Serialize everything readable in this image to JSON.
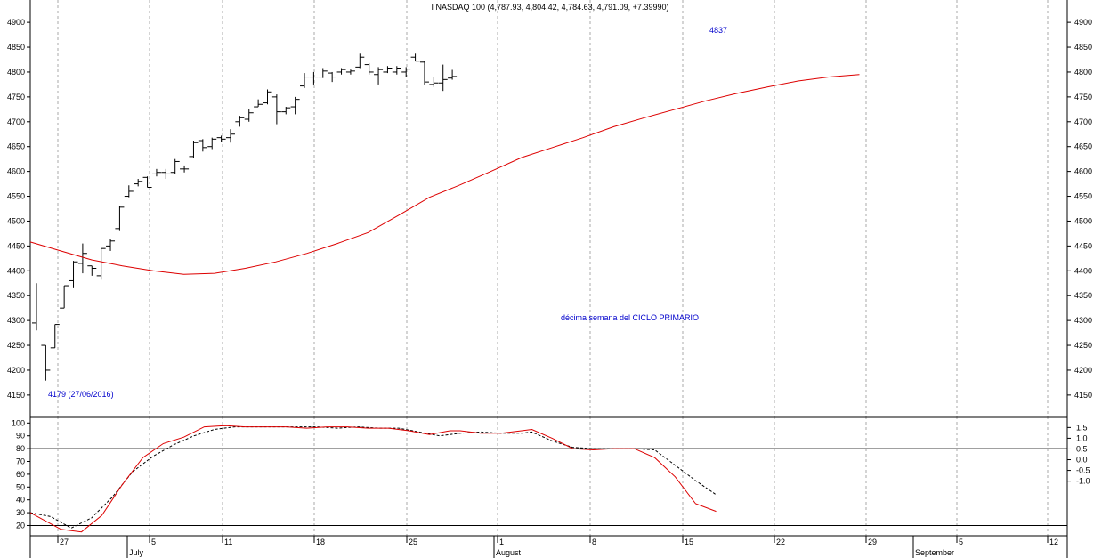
{
  "chart_data": {
    "type": "ohlc",
    "title": "I NASDAQ 100 (4,787.93, 4,804.42, 4,784.63, 4,791.09, +7.39990)",
    "annotations": {
      "low_label": "4179 (27/06/2016)",
      "high_label": "4837",
      "cycle_label": "décima semana del CICLO PRIMARIO"
    },
    "price_axis": {
      "ticks": [
        "4900",
        "4850",
        "4800",
        "4750",
        "4700",
        "4650",
        "4600",
        "4550",
        "4500",
        "4450",
        "4400",
        "4350",
        "4300",
        "4250",
        "4200",
        "4150"
      ],
      "ylim": [
        4105,
        4945
      ]
    },
    "osc_axis_left": {
      "ticks": [
        "100",
        "90",
        "80",
        "70",
        "60",
        "50",
        "40",
        "30",
        "20"
      ],
      "ylim": [
        12,
        103
      ]
    },
    "osc_axis_right": {
      "ticks": [
        "1.5",
        "1.0",
        "0.5",
        "0.0",
        "-0.5",
        "-1.0"
      ]
    },
    "reference_lines": [
      80,
      20
    ],
    "x_axis": {
      "day_ticks": [
        "27",
        "5",
        "11",
        "18",
        "25",
        "1",
        "8",
        "15",
        "22",
        "29",
        "5",
        "12"
      ],
      "months": [
        "July",
        "August",
        "September"
      ]
    },
    "series_colors": {
      "bars": "#000000",
      "moving_average": "#dd0000",
      "osc_fast": "#dd0000",
      "osc_slow": "#000000"
    },
    "bars": [
      {
        "o": 4295,
        "h": 4375,
        "l": 4280,
        "c": 4285
      },
      {
        "o": 4250,
        "h": 4250,
        "l": 4179,
        "c": 4200
      },
      {
        "o": 4245,
        "h": 4292,
        "l": 4245,
        "c": 4292
      },
      {
        "o": 4325,
        "h": 4370,
        "l": 4325,
        "c": 4370
      },
      {
        "o": 4380,
        "h": 4420,
        "l": 4365,
        "c": 4418
      },
      {
        "o": 4415,
        "h": 4455,
        "l": 4395,
        "c": 4435
      },
      {
        "o": 4410,
        "h": 4410,
        "l": 4390,
        "c": 4405
      },
      {
        "o": 4390,
        "h": 4445,
        "l": 4382,
        "c": 4445
      },
      {
        "o": 4450,
        "h": 4465,
        "l": 4440,
        "c": 4460
      },
      {
        "o": 4485,
        "h": 4530,
        "l": 4480,
        "c": 4528
      },
      {
        "o": 4550,
        "h": 4572,
        "l": 4548,
        "c": 4560
      },
      {
        "o": 4575,
        "h": 4585,
        "l": 4570,
        "c": 4580
      },
      {
        "o": 4588,
        "h": 4590,
        "l": 4568,
        "c": 4568
      },
      {
        "o": 4595,
        "h": 4605,
        "l": 4590,
        "c": 4598
      },
      {
        "o": 4598,
        "h": 4605,
        "l": 4585,
        "c": 4595
      },
      {
        "o": 4598,
        "h": 4625,
        "l": 4595,
        "c": 4620
      },
      {
        "o": 4605,
        "h": 4612,
        "l": 4598,
        "c": 4605
      },
      {
        "o": 4630,
        "h": 4662,
        "l": 4628,
        "c": 4658
      },
      {
        "o": 4662,
        "h": 4665,
        "l": 4640,
        "c": 4648
      },
      {
        "o": 4650,
        "h": 4668,
        "l": 4645,
        "c": 4665
      },
      {
        "o": 4668,
        "h": 4672,
        "l": 4660,
        "c": 4665
      },
      {
        "o": 4668,
        "h": 4685,
        "l": 4658,
        "c": 4675
      },
      {
        "o": 4700,
        "h": 4712,
        "l": 4690,
        "c": 4708
      },
      {
        "o": 4705,
        "h": 4725,
        "l": 4700,
        "c": 4718
      },
      {
        "o": 4730,
        "h": 4745,
        "l": 4730,
        "c": 4735
      },
      {
        "o": 4738,
        "h": 4765,
        "l": 4735,
        "c": 4760
      },
      {
        "o": 4750,
        "h": 4755,
        "l": 4695,
        "c": 4720
      },
      {
        "o": 4720,
        "h": 4730,
        "l": 4715,
        "c": 4728
      },
      {
        "o": 4730,
        "h": 4750,
        "l": 4715,
        "c": 4745
      },
      {
        "o": 4772,
        "h": 4798,
        "l": 4768,
        "c": 4790
      },
      {
        "o": 4790,
        "h": 4800,
        "l": 4775,
        "c": 4790
      },
      {
        "o": 4790,
        "h": 4808,
        "l": 4788,
        "c": 4802
      },
      {
        "o": 4798,
        "h": 4800,
        "l": 4780,
        "c": 4790
      },
      {
        "o": 4800,
        "h": 4808,
        "l": 4795,
        "c": 4805
      },
      {
        "o": 4800,
        "h": 4805,
        "l": 4795,
        "c": 4802
      },
      {
        "o": 4810,
        "h": 4837,
        "l": 4808,
        "c": 4830
      },
      {
        "o": 4815,
        "h": 4818,
        "l": 4795,
        "c": 4800
      },
      {
        "o": 4795,
        "h": 4810,
        "l": 4775,
        "c": 4805
      },
      {
        "o": 4800,
        "h": 4812,
        "l": 4798,
        "c": 4808
      },
      {
        "o": 4800,
        "h": 4812,
        "l": 4795,
        "c": 4808
      },
      {
        "o": 4800,
        "h": 4810,
        "l": 4790,
        "c": 4806
      },
      {
        "o": 4830,
        "h": 4837,
        "l": 4822,
        "c": 4822
      },
      {
        "o": 4820,
        "h": 4822,
        "l": 4775,
        "c": 4780
      },
      {
        "o": 4775,
        "h": 4790,
        "l": 4770,
        "c": 4778
      },
      {
        "o": 4778,
        "h": 4815,
        "l": 4762,
        "c": 4785
      },
      {
        "o": 4787.93,
        "h": 4804.42,
        "l": 4784.63,
        "c": 4791.09
      }
    ],
    "moving_average": [
      [
        0,
        4458
      ],
      [
        3,
        4440
      ],
      [
        6,
        4422
      ],
      [
        9,
        4410
      ],
      [
        12,
        4400
      ],
      [
        15,
        4393
      ],
      [
        18,
        4395
      ],
      [
        21,
        4405
      ],
      [
        24,
        4418
      ],
      [
        27,
        4435
      ],
      [
        30,
        4455
      ],
      [
        33,
        4477
      ],
      [
        36,
        4512
      ],
      [
        39,
        4548
      ],
      [
        42,
        4573
      ],
      [
        45,
        4600
      ],
      [
        48,
        4628
      ],
      [
        51,
        4648
      ],
      [
        54,
        4668
      ],
      [
        57,
        4690
      ],
      [
        60,
        4708
      ],
      [
        63,
        4725
      ],
      [
        66,
        4742
      ],
      [
        69,
        4757
      ],
      [
        72,
        4770
      ],
      [
        75,
        4782
      ],
      [
        78,
        4790
      ],
      [
        81,
        4795
      ]
    ],
    "osc_fast": [
      [
        0,
        30
      ],
      [
        3,
        17
      ],
      [
        5,
        15
      ],
      [
        7,
        28
      ],
      [
        9,
        52
      ],
      [
        11,
        73
      ],
      [
        13,
        84
      ],
      [
        15,
        89
      ],
      [
        17,
        97
      ],
      [
        19,
        98
      ],
      [
        21,
        97
      ],
      [
        23,
        97
      ],
      [
        25,
        97
      ],
      [
        27,
        96
      ],
      [
        29,
        97
      ],
      [
        31,
        97
      ],
      [
        33,
        96
      ],
      [
        35,
        96
      ],
      [
        37,
        94
      ],
      [
        39,
        91
      ],
      [
        41,
        94
      ],
      [
        42,
        94
      ],
      [
        44,
        92
      ],
      [
        46,
        92
      ],
      [
        48,
        94
      ],
      [
        49,
        95
      ],
      [
        51,
        88
      ],
      [
        53,
        80
      ],
      [
        55,
        79
      ],
      [
        57,
        80
      ],
      [
        59,
        80
      ],
      [
        61,
        73
      ],
      [
        63,
        58
      ],
      [
        65,
        37
      ],
      [
        67,
        31
      ]
    ],
    "osc_slow": [
      [
        0,
        30
      ],
      [
        2,
        27
      ],
      [
        4,
        18
      ],
      [
        6,
        26
      ],
      [
        8,
        42
      ],
      [
        10,
        62
      ],
      [
        12,
        74
      ],
      [
        14,
        83
      ],
      [
        16,
        90
      ],
      [
        18,
        95
      ],
      [
        20,
        97
      ],
      [
        22,
        97
      ],
      [
        24,
        97
      ],
      [
        26,
        97
      ],
      [
        28,
        97
      ],
      [
        30,
        96
      ],
      [
        32,
        97
      ],
      [
        34,
        96
      ],
      [
        36,
        96
      ],
      [
        38,
        93
      ],
      [
        40,
        90
      ],
      [
        42,
        92
      ],
      [
        44,
        93
      ],
      [
        46,
        92
      ],
      [
        48,
        92
      ],
      [
        49,
        93
      ],
      [
        51,
        86
      ],
      [
        53,
        81
      ],
      [
        55,
        80
      ],
      [
        57,
        80
      ],
      [
        59,
        80
      ],
      [
        61,
        79
      ],
      [
        63,
        67
      ],
      [
        65,
        55
      ],
      [
        67,
        44
      ]
    ]
  }
}
